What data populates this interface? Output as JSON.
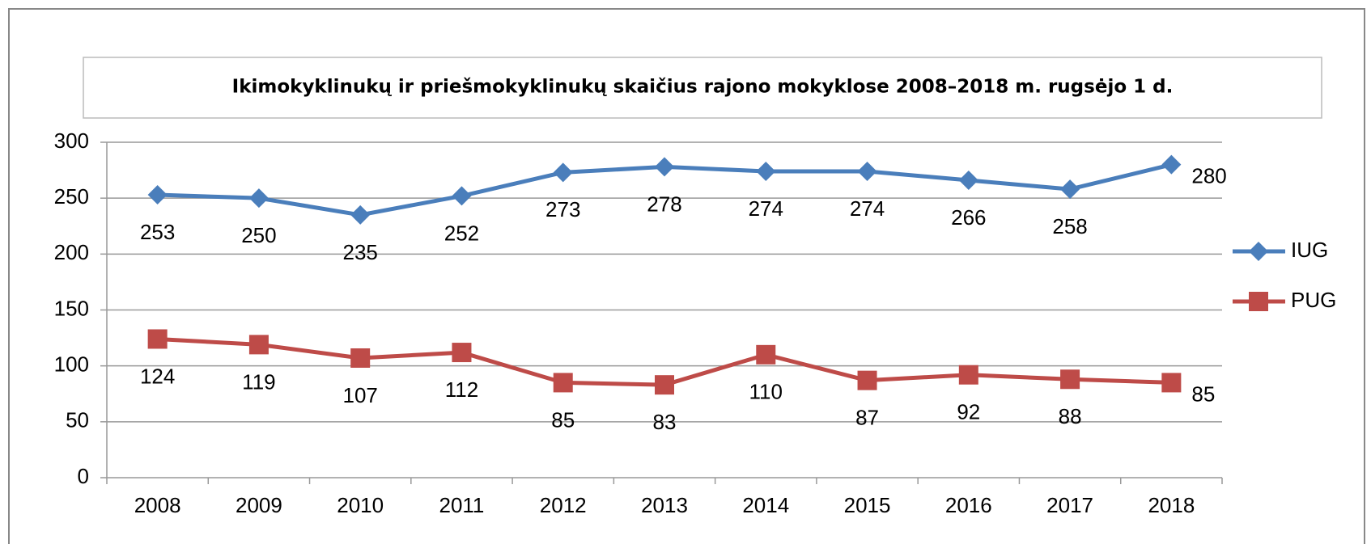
{
  "chart_data": {
    "type": "line",
    "title": "Ikimokyklinukų ir priešmokyklinukų skaičius rajono mokyklose 2008–2018  m. rugsėjo 1 d.",
    "categories": [
      "2008",
      "2009",
      "2010",
      "2011",
      "2012",
      "2013",
      "2014",
      "2015",
      "2016",
      "2017",
      "2018"
    ],
    "series": [
      {
        "name": "IUG",
        "color": "#4a7ebb",
        "marker": "diamond",
        "values": [
          253,
          250,
          235,
          252,
          273,
          278,
          274,
          274,
          266,
          258,
          280
        ]
      },
      {
        "name": "PUG",
        "color": "#be4b48",
        "marker": "square",
        "values": [
          124,
          119,
          107,
          112,
          85,
          83,
          110,
          87,
          92,
          88,
          85
        ]
      }
    ],
    "ylim": [
      0,
      300
    ],
    "yticks": [
      0,
      50,
      100,
      150,
      200,
      250,
      300
    ],
    "grid": true,
    "legend": "right"
  }
}
